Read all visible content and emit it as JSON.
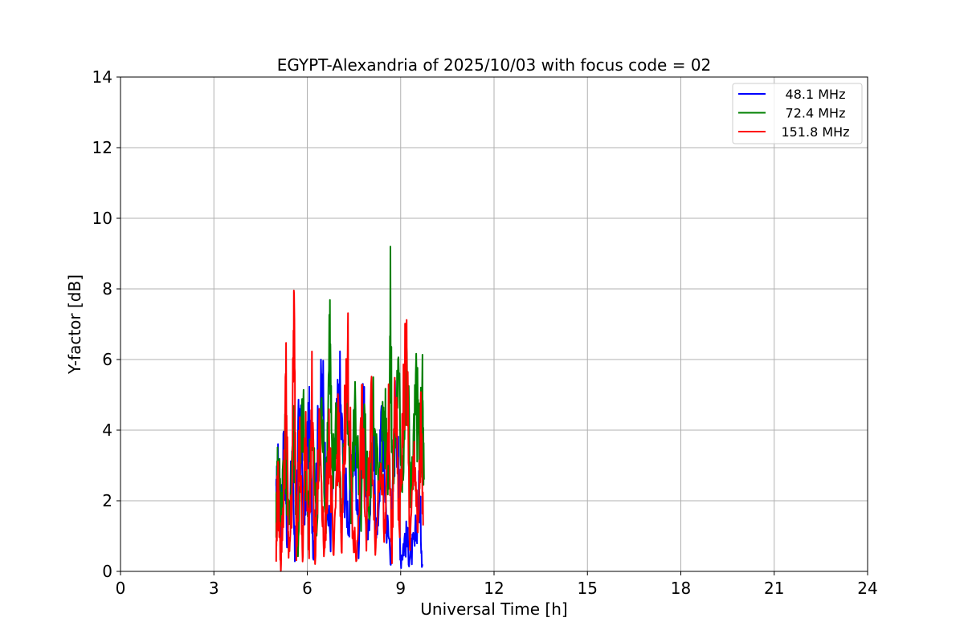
{
  "chart_data": {
    "type": "line",
    "title": "EGYPT-Alexandria of 2025/10/03 with focus code = 02",
    "xlabel": "Universal Time [h]",
    "ylabel": "Y-factor [dB]",
    "xlim": [
      0,
      24
    ],
    "ylim": [
      0,
      14
    ],
    "xticks": [
      "0",
      "3",
      "6",
      "9",
      "12",
      "15",
      "18",
      "21",
      "24"
    ],
    "yticks": [
      "0",
      "2",
      "4",
      "6",
      "8",
      "10",
      "12",
      "14"
    ],
    "grid": true,
    "legend_position": "top-right",
    "series": [
      {
        "name": "48.1 MHz",
        "color": "#0000ff",
        "data_range": [
          5.0,
          9.75
        ],
        "points": [
          [
            5.0,
            1.8
          ],
          [
            5.05,
            2.9
          ],
          [
            5.15,
            1.0
          ],
          [
            5.25,
            4.0
          ],
          [
            5.35,
            0.8
          ],
          [
            5.5,
            3.2
          ],
          [
            5.6,
            0.5
          ],
          [
            5.75,
            4.5
          ],
          [
            5.9,
            1.5
          ],
          [
            6.05,
            4.3
          ],
          [
            6.2,
            0.6
          ],
          [
            6.35,
            3.9
          ],
          [
            6.5,
            5.1
          ],
          [
            6.6,
            2.0
          ],
          [
            6.75,
            1.1
          ],
          [
            6.9,
            3.5
          ],
          [
            7.05,
            4.9
          ],
          [
            7.2,
            2.5
          ],
          [
            7.35,
            1.3
          ],
          [
            7.5,
            4.0
          ],
          [
            7.65,
            0.9
          ],
          [
            7.8,
            5.15
          ],
          [
            7.95,
            0.6
          ],
          [
            8.1,
            3.8
          ],
          [
            8.25,
            1.0
          ],
          [
            8.4,
            4.6
          ],
          [
            8.55,
            1.4
          ],
          [
            8.7,
            0.5
          ],
          [
            8.85,
            5.4
          ],
          [
            9.0,
            0.4
          ],
          [
            9.15,
            1.0
          ],
          [
            9.3,
            0.5
          ],
          [
            9.45,
            0.7
          ],
          [
            9.6,
            2.3
          ],
          [
            9.7,
            0.2
          ]
        ]
      },
      {
        "name": "72.4 MHz",
        "color": "#008000",
        "data_range": [
          5.0,
          9.75
        ],
        "points": [
          [
            5.0,
            1.5
          ],
          [
            5.05,
            3.3
          ],
          [
            5.15,
            2.0
          ],
          [
            5.3,
            3.5
          ],
          [
            5.4,
            1.2
          ],
          [
            5.55,
            4.2
          ],
          [
            5.7,
            0.8
          ],
          [
            5.85,
            4.6
          ],
          [
            6.0,
            1.6
          ],
          [
            6.15,
            4.4
          ],
          [
            6.3,
            1.2
          ],
          [
            6.45,
            4.7
          ],
          [
            6.6,
            1.8
          ],
          [
            6.72,
            7.2
          ],
          [
            6.8,
            2.4
          ],
          [
            6.95,
            4.7
          ],
          [
            7.1,
            1.4
          ],
          [
            7.25,
            5.2
          ],
          [
            7.4,
            2.0
          ],
          [
            7.55,
            4.9
          ],
          [
            7.7,
            1.2
          ],
          [
            7.85,
            4.0
          ],
          [
            8.0,
            1.6
          ],
          [
            8.15,
            5.0
          ],
          [
            8.3,
            2.0
          ],
          [
            8.45,
            4.6
          ],
          [
            8.6,
            3.0
          ],
          [
            8.67,
            7.1
          ],
          [
            8.75,
            2.5
          ],
          [
            8.9,
            5.6
          ],
          [
            9.05,
            3.0
          ],
          [
            9.2,
            5.5
          ],
          [
            9.35,
            2.2
          ],
          [
            9.5,
            5.0
          ],
          [
            9.6,
            3.5
          ],
          [
            9.7,
            4.8
          ],
          [
            9.75,
            2.6
          ]
        ]
      },
      {
        "name": "151.8 MHz",
        "color": "#ff0000",
        "data_range": [
          5.0,
          9.75
        ],
        "points": [
          [
            5.0,
            0.4
          ],
          [
            5.05,
            2.6
          ],
          [
            5.15,
            0.3
          ],
          [
            5.25,
            2.3
          ],
          [
            5.32,
            5.4
          ],
          [
            5.4,
            0.4
          ],
          [
            5.5,
            2.0
          ],
          [
            5.57,
            7.3
          ],
          [
            5.65,
            0.8
          ],
          [
            5.75,
            3.8
          ],
          [
            5.85,
            0.3
          ],
          [
            5.95,
            4.5
          ],
          [
            6.05,
            0.5
          ],
          [
            6.15,
            4.8
          ],
          [
            6.25,
            0.2
          ],
          [
            6.4,
            4.3
          ],
          [
            6.55,
            0.4
          ],
          [
            6.7,
            4.0
          ],
          [
            6.85,
            0.1
          ],
          [
            7.0,
            4.6
          ],
          [
            7.1,
            0.3
          ],
          [
            7.2,
            4.2
          ],
          [
            7.32,
            6.05
          ],
          [
            7.45,
            1.0
          ],
          [
            7.6,
            0.5
          ],
          [
            7.75,
            4.4
          ],
          [
            7.9,
            0.8
          ],
          [
            8.05,
            4.8
          ],
          [
            8.2,
            0.6
          ],
          [
            8.35,
            3.9
          ],
          [
            8.5,
            0.7
          ],
          [
            8.6,
            4.5
          ],
          [
            8.72,
            0.4
          ],
          [
            8.82,
            5.5
          ],
          [
            8.95,
            1.0
          ],
          [
            9.05,
            3.7
          ],
          [
            9.18,
            6.7
          ],
          [
            9.3,
            0.6
          ],
          [
            9.45,
            3.5
          ],
          [
            9.55,
            0.8
          ],
          [
            9.65,
            4.0
          ],
          [
            9.72,
            1.3
          ]
        ]
      }
    ]
  }
}
